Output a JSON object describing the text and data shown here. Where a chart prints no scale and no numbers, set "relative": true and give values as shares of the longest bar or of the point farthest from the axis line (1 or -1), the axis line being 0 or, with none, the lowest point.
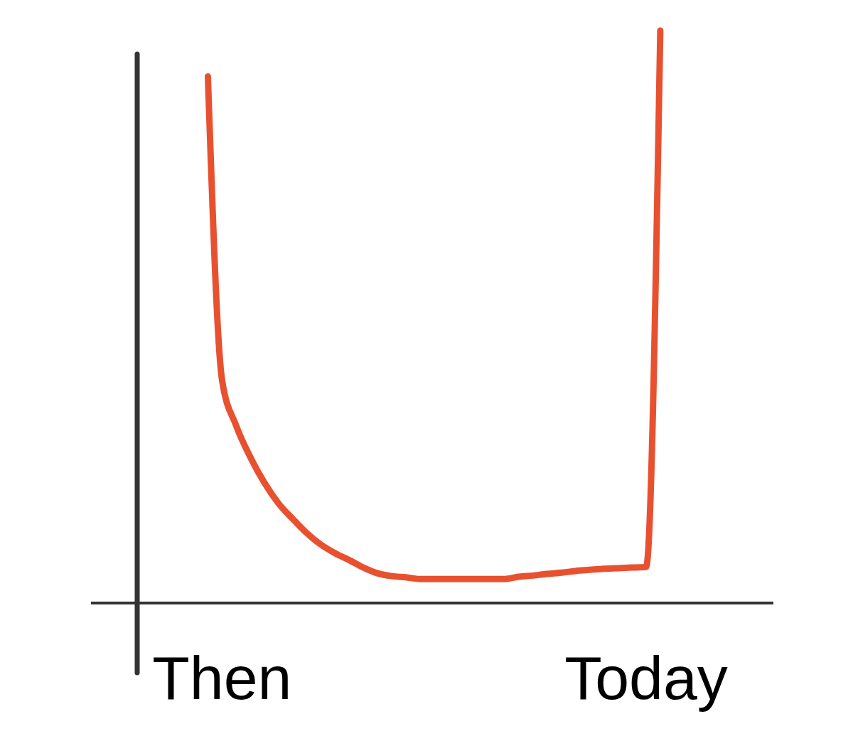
{
  "chart_data": {
    "type": "line",
    "relative": true,
    "categories": [
      null,
      null,
      null,
      null,
      null,
      null,
      "Then",
      null,
      null,
      null,
      null,
      null,
      null,
      null,
      null,
      null,
      null,
      null,
      null,
      null,
      null,
      null,
      null,
      null,
      null,
      null,
      null,
      null,
      null,
      null,
      null,
      null,
      null,
      null,
      null,
      null,
      "Today",
      null,
      null,
      null,
      null,
      null,
      null,
      null,
      null,
      null
    ],
    "series": [
      {
        "color": "#e8512f",
        "values": [
          null,
          null,
          null,
          null,
          null,
          0.92,
          0.39,
          0.31,
          0.255,
          0.21,
          0.174,
          0.147,
          0.122,
          0.102,
          0.087,
          0.075,
          0.062,
          0.052,
          0.047,
          0.045,
          0.042,
          0.042,
          0.042,
          0.042,
          0.042,
          0.042,
          0.042,
          0.046,
          0.048,
          0.051,
          0.053,
          0.056,
          0.058,
          0.06,
          0.061,
          0.062,
          0.063,
          1.0,
          null,
          null,
          null,
          null,
          null,
          null,
          null,
          null
        ]
      }
    ]
  }
}
